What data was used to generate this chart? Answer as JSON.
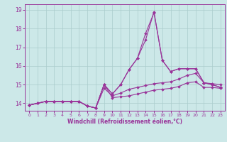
{
  "xlabel": "Windchill (Refroidissement éolien,°C)",
  "xlim": [
    -0.5,
    23.5
  ],
  "ylim": [
    13.6,
    19.3
  ],
  "yticks": [
    14,
    15,
    16,
    17,
    18,
    19
  ],
  "xticks": [
    0,
    1,
    2,
    3,
    4,
    5,
    6,
    7,
    8,
    9,
    10,
    11,
    12,
    13,
    14,
    15,
    16,
    17,
    18,
    19,
    20,
    21,
    22,
    23
  ],
  "bg_color": "#cce8e8",
  "line_color": "#993399",
  "grid_color": "#aacccc",
  "lines": [
    [
      13.9,
      14.0,
      14.1,
      14.1,
      14.1,
      14.1,
      14.1,
      13.85,
      13.75,
      15.0,
      14.3,
      14.35,
      14.4,
      14.5,
      14.6,
      14.7,
      14.75,
      14.8,
      14.9,
      15.1,
      15.15,
      14.85,
      14.85,
      14.8
    ],
    [
      13.9,
      14.0,
      14.1,
      14.1,
      14.1,
      14.1,
      14.1,
      13.85,
      13.75,
      14.8,
      14.4,
      14.55,
      14.75,
      14.85,
      14.95,
      15.05,
      15.1,
      15.15,
      15.3,
      15.5,
      15.6,
      15.1,
      15.05,
      15.0
    ],
    [
      13.9,
      14.0,
      14.1,
      14.1,
      14.1,
      14.1,
      14.1,
      13.85,
      13.75,
      15.0,
      14.5,
      15.0,
      15.8,
      16.4,
      17.4,
      18.9,
      16.3,
      15.7,
      15.85,
      15.85,
      15.85,
      15.1,
      15.0,
      14.85
    ],
    [
      13.9,
      14.0,
      14.1,
      14.1,
      14.1,
      14.1,
      14.1,
      13.85,
      13.75,
      15.0,
      14.5,
      15.0,
      15.8,
      16.4,
      17.75,
      18.85,
      16.3,
      15.7,
      15.85,
      15.85,
      15.85,
      15.1,
      15.0,
      14.85
    ]
  ]
}
